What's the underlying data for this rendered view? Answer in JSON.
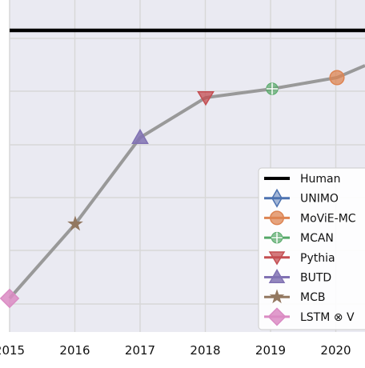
{
  "chart_data": {
    "type": "line",
    "x_ticks": [
      2015,
      2016,
      2017,
      2018,
      2019,
      2020
    ],
    "x_tick_labels": [
      "2015",
      "2016",
      "2017",
      "2018",
      "2019",
      "2020"
    ],
    "xlim": [
      2015,
      2020.5
    ],
    "ylim": [
      0,
      100
    ],
    "y_gridlines": [
      0,
      20,
      40,
      60,
      80,
      100
    ],
    "grid": true,
    "human_level": 91,
    "trend_line": {
      "color": "#999999",
      "x": [
        2015,
        2016,
        2017,
        2018,
        2019,
        2020,
        2020.5
      ],
      "y": [
        12.7,
        40.9,
        64.1,
        77.3,
        80.4,
        83.8,
        88.4
      ]
    },
    "series": [
      {
        "name": "Human",
        "marker": "none",
        "color": "#000000",
        "x": null,
        "y": null
      },
      {
        "name": "UNIMO",
        "marker": "thin-diamond",
        "color": "#4c72b0",
        "x": null,
        "y": null
      },
      {
        "name": "MoViE-MC",
        "marker": "circle",
        "color": "#dd8452",
        "x": 2020,
        "y": 83.8
      },
      {
        "name": "MCAN",
        "marker": "plus",
        "color": "#55a868",
        "x": 2019,
        "y": 80.4
      },
      {
        "name": "Pythia",
        "marker": "triangle-down",
        "color": "#c44e52",
        "x": 2018,
        "y": 77.3
      },
      {
        "name": "BUTD",
        "marker": "triangle-up",
        "color": "#8172b3",
        "x": 2017,
        "y": 64.1
      },
      {
        "name": "MCB",
        "marker": "star",
        "color": "#937860",
        "x": 2016,
        "y": 40.9
      },
      {
        "name": "LSTM ⊗ V",
        "marker": "diamond",
        "color": "#da8bc3",
        "x": 2015,
        "y": 12.7
      }
    ],
    "legend_placement": "lower-right",
    "colors": {
      "plot_background": "#eaeaf2",
      "grid": "#d7d7d7",
      "legend_background": "#ffffff"
    }
  }
}
